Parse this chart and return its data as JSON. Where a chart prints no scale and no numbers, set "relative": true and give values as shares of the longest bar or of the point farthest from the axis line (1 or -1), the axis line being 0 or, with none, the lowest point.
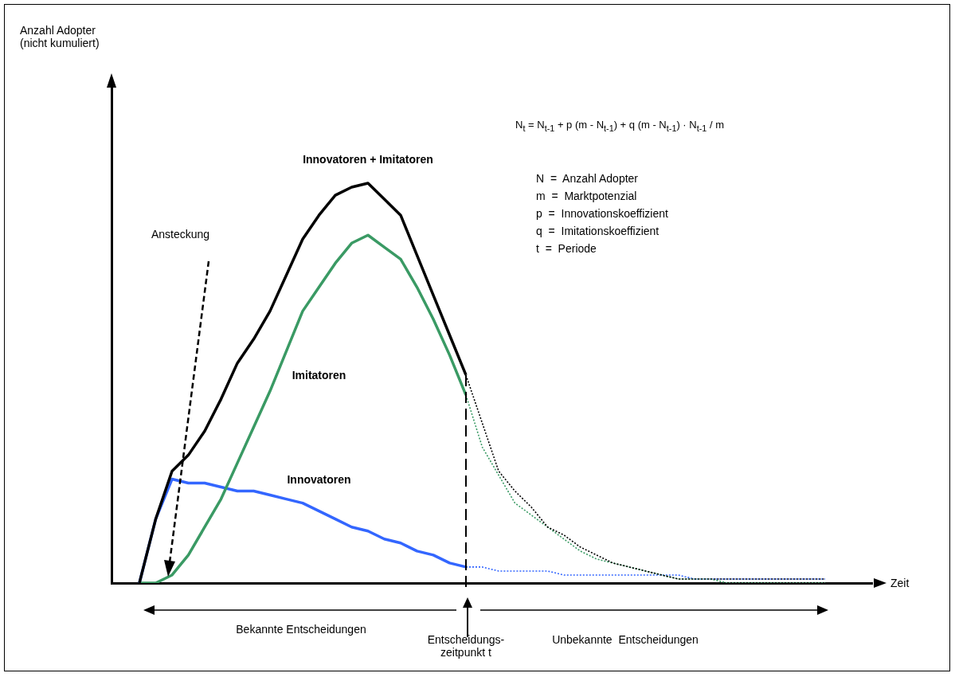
{
  "chart_data": {
    "type": "line",
    "relative": true,
    "legend": false,
    "grid": false,
    "categories": [
      null,
      null,
      null,
      null,
      null,
      null,
      null,
      null,
      null,
      null,
      null,
      null,
      null,
      null,
      null,
      null,
      null,
      null,
      null,
      null,
      null,
      null,
      null,
      null,
      null,
      null,
      null,
      null,
      null,
      null,
      null,
      null,
      null,
      null,
      null,
      null,
      null,
      null,
      null,
      null,
      null,
      null,
      null
    ],
    "series": [
      {
        "name": "Innovatoren + Imitatoren",
        "color": "#000000",
        "values": [
          0,
          0.16,
          0.28,
          0.32,
          0.38,
          0.46,
          0.55,
          0.61,
          0.68,
          0.77,
          0.86,
          0.92,
          0.97,
          0.99,
          1,
          0.96,
          0.92,
          0.82,
          0.72,
          0.62,
          0.52,
          null,
          null,
          null,
          null,
          null,
          null,
          null,
          null,
          null,
          null,
          null,
          null,
          null,
          null,
          null,
          null,
          null,
          null,
          null,
          null,
          null,
          null
        ]
      },
      {
        "name": "Imitatoren",
        "color": "#3a9a64",
        "values": [
          0,
          0,
          0.02,
          0.07,
          0.14,
          0.21,
          0.3,
          0.39,
          0.48,
          0.58,
          0.68,
          0.74,
          0.8,
          0.85,
          0.87,
          0.84,
          0.81,
          0.74,
          0.66,
          0.57,
          0.47,
          null,
          null,
          null,
          null,
          null,
          null,
          null,
          null,
          null,
          null,
          null,
          null,
          null,
          null,
          null,
          null,
          null,
          null,
          null,
          null,
          null,
          null
        ]
      },
      {
        "name": "Innovatoren",
        "color": "#3366ff",
        "values": [
          0,
          0.16,
          0.26,
          0.25,
          0.25,
          0.24,
          0.23,
          0.23,
          0.22,
          0.21,
          0.2,
          0.18,
          0.16,
          0.14,
          0.13,
          0.11,
          0.1,
          0.08,
          0.07,
          0.05,
          0.04,
          null,
          null,
          null,
          null,
          null,
          null,
          null,
          null,
          null,
          null,
          null,
          null,
          null,
          null,
          null,
          null,
          null,
          null,
          null,
          null,
          null,
          null
        ]
      },
      {
        "color": "#000000",
        "line_style": "dotted",
        "values": [
          null,
          null,
          null,
          null,
          null,
          null,
          null,
          null,
          null,
          null,
          null,
          null,
          null,
          null,
          null,
          null,
          null,
          null,
          null,
          null,
          0.52,
          0.4,
          0.28,
          0.23,
          0.19,
          0.14,
          0.12,
          0.09,
          0.07,
          0.05,
          0.04,
          0.03,
          0.02,
          0.01,
          0.01,
          0.01,
          0.01,
          0.01,
          0.01,
          0.01,
          0.01,
          0.01,
          0.01
        ]
      },
      {
        "color": "#3a9a64",
        "line_style": "dotted",
        "values": [
          null,
          null,
          null,
          null,
          null,
          null,
          null,
          null,
          null,
          null,
          null,
          null,
          null,
          null,
          null,
          null,
          null,
          null,
          null,
          null,
          0.47,
          0.34,
          0.27,
          0.2,
          0.17,
          0.14,
          0.11,
          0.08,
          0.06,
          0.05,
          0.04,
          0.03,
          0.02,
          0.01,
          0.01,
          0.01,
          0,
          0,
          0,
          0,
          0,
          0,
          0
        ]
      },
      {
        "color": "#3366ff",
        "line_style": "dotted",
        "values": [
          null,
          null,
          null,
          null,
          null,
          null,
          null,
          null,
          null,
          null,
          null,
          null,
          null,
          null,
          null,
          null,
          null,
          null,
          null,
          null,
          0.04,
          0.04,
          0.03,
          0.03,
          0.03,
          0.03,
          0.02,
          0.02,
          0.02,
          0.02,
          0.02,
          0.02,
          0.02,
          0.02,
          0.01,
          0.01,
          0.01,
          0.01,
          0.01,
          0.01,
          0.01,
          0.01,
          0.01
        ]
      }
    ],
    "annotations": [
      "Anzahl Adopter\n(nicht kumuliert)",
      "Zeit",
      "Ansteckung",
      "N$_{t}$ = N$_{t-1}$ + p (m - N$_{t-1}$) + q (m - N$_{t-1}$) · N$_{t-1}$ / m",
      "N  =  Anzahl Adopter",
      "m  =  Marktpotenzial",
      "p  =  Innovationskoeffizient",
      "q  =  Imitationskoeffizient",
      "t  =  Periode",
      "Bekannte Entscheidungen",
      "Entscheidungs-\nzeitpunkt t",
      "Unbekannte  Entscheidungen"
    ]
  }
}
